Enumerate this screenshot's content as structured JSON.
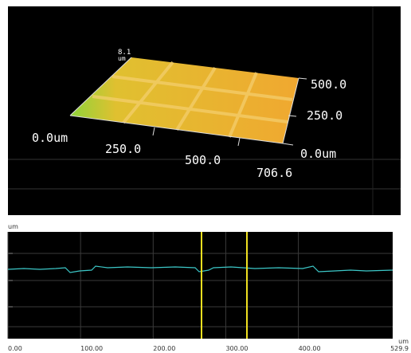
{
  "view3d": {
    "z_max": "8.1",
    "z_unit": "um",
    "x_origin": "0.0um",
    "x_ticks": [
      "250.0",
      "500.0",
      "706.6"
    ],
    "y_ticks": [
      "500.0",
      "250.0"
    ],
    "y_origin": "0.0um"
  },
  "profile": {
    "y_unit": "um",
    "x_unit": "um",
    "xlim": [
      0,
      529.9
    ],
    "xticks": [
      {
        "value": 0,
        "label": "0.00"
      },
      {
        "value": 100,
        "label": "100.00"
      },
      {
        "value": 200,
        "label": "200.00"
      },
      {
        "value": 300,
        "label": "300.00"
      },
      {
        "value": 400,
        "label": "400.00"
      }
    ]
  }
}
